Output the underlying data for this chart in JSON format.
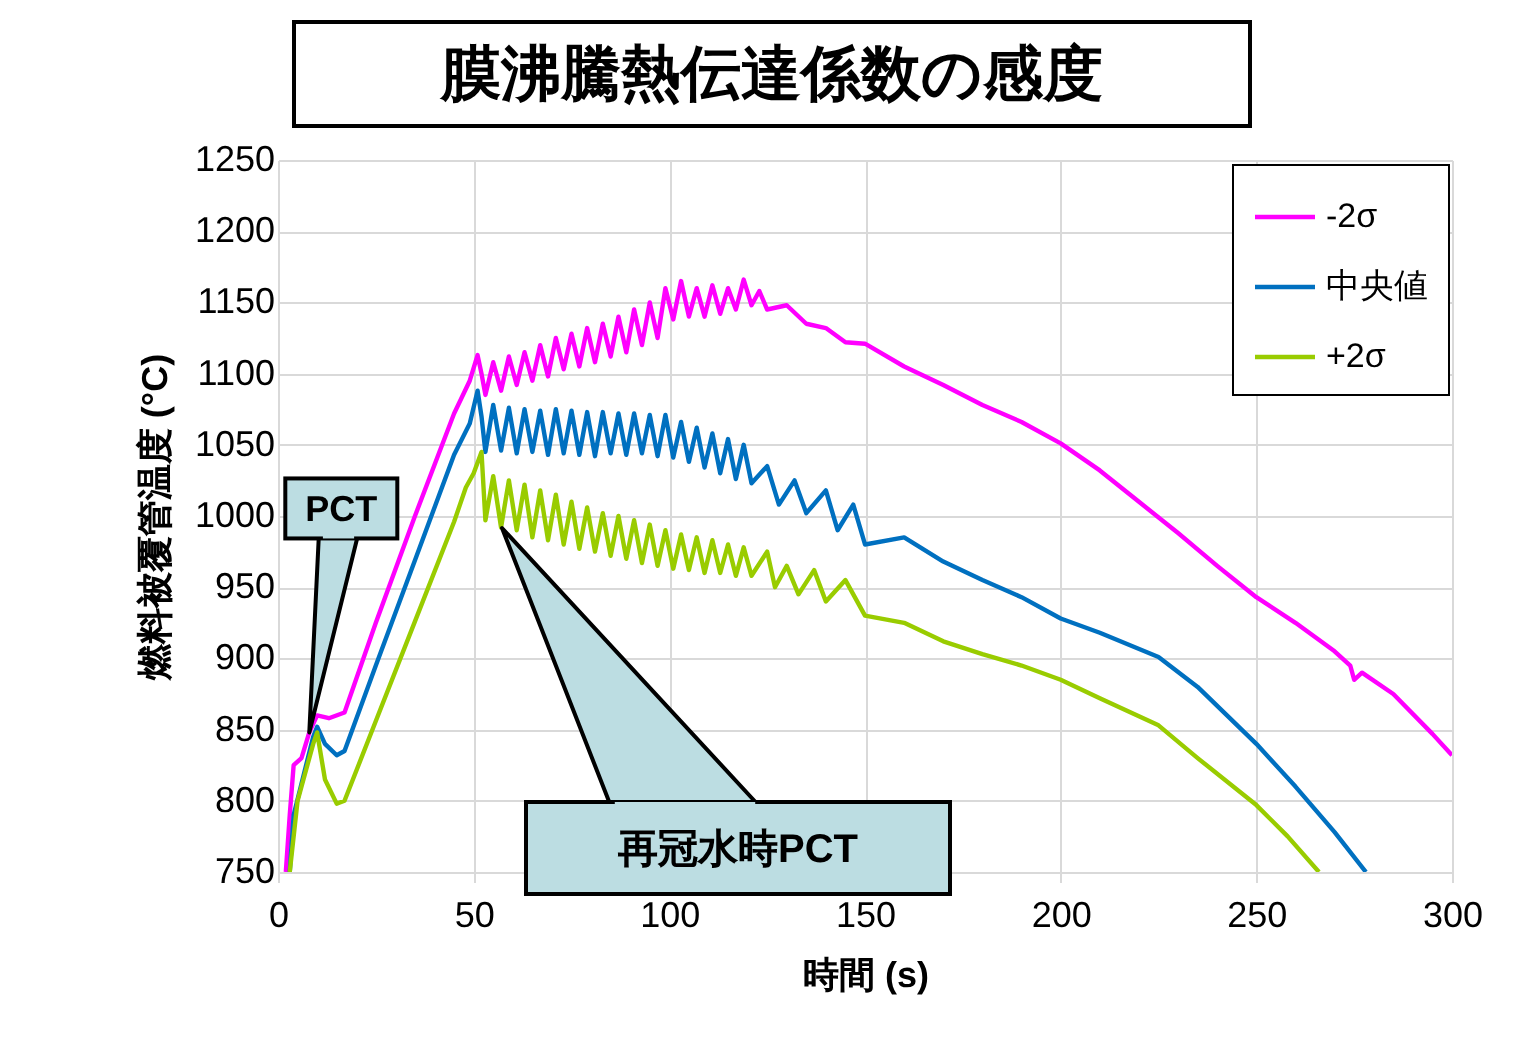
{
  "chart_data": {
    "type": "line",
    "title": "膜沸騰熱伝達係数の感度",
    "xlabel": "時間 (s)",
    "ylabel": "燃料被覆管温度 (°C)",
    "xlim": [
      0,
      300
    ],
    "xticks": [
      0,
      50,
      100,
      150,
      200,
      250,
      300
    ],
    "ylim": [
      750,
      1250
    ],
    "yticks": [
      750,
      800,
      850,
      900,
      950,
      1000,
      1050,
      1100,
      1150,
      1200,
      1250
    ],
    "grid": true,
    "legend": "top right",
    "line_style": "solid",
    "annotations": [
      "再冠水時PCT",
      {
        "text": "PCT",
        "x": 8,
        "y": 848
      }
    ],
    "series": [
      {
        "name": "-2σ",
        "color": "#ff00ff",
        "x": [
          2,
          3,
          4,
          6,
          8,
          10,
          13,
          17,
          25,
          35,
          45,
          49,
          51,
          52,
          53,
          55,
          57,
          59,
          61,
          63,
          65,
          67,
          69,
          71,
          73,
          75,
          77,
          79,
          81,
          83,
          85,
          87,
          89,
          91,
          93,
          95,
          97,
          99,
          101,
          103,
          105,
          107,
          109,
          111,
          113,
          115,
          117,
          119,
          121,
          123,
          125,
          130,
          135,
          140,
          145,
          150,
          160,
          170,
          180,
          190,
          200,
          210,
          220,
          230,
          240,
          250,
          260,
          270,
          274,
          275,
          277,
          285,
          295,
          300
        ],
        "values": [
          750,
          790,
          825,
          830,
          848,
          860,
          858,
          862,
          925,
          1000,
          1072,
          1095,
          1113,
          1100,
          1085,
          1108,
          1088,
          1112,
          1092,
          1115,
          1095,
          1120,
          1098,
          1125,
          1103,
          1128,
          1105,
          1132,
          1108,
          1135,
          1112,
          1140,
          1115,
          1145,
          1120,
          1150,
          1125,
          1160,
          1138,
          1165,
          1140,
          1160,
          1140,
          1162,
          1142,
          1160,
          1145,
          1166,
          1148,
          1158,
          1145,
          1148,
          1135,
          1132,
          1122,
          1121,
          1105,
          1092,
          1078,
          1066,
          1051,
          1032,
          1010,
          988,
          965,
          943,
          925,
          905,
          895,
          885,
          890,
          875,
          847,
          832
        ]
      },
      {
        "name": "中央値",
        "color": "#0070c0",
        "x": [
          3,
          4,
          6,
          9,
          10,
          12,
          15,
          17,
          25,
          35,
          45,
          49,
          51,
          52,
          53,
          55,
          57,
          59,
          61,
          63,
          65,
          67,
          69,
          71,
          73,
          75,
          77,
          79,
          81,
          83,
          85,
          87,
          89,
          91,
          93,
          95,
          97,
          99,
          101,
          103,
          105,
          107,
          109,
          111,
          113,
          115,
          117,
          119,
          121,
          125,
          128,
          132,
          135,
          140,
          143,
          147,
          150,
          160,
          170,
          180,
          190,
          200,
          210,
          225,
          235,
          250,
          260,
          270,
          278
        ],
        "values": [
          750,
          790,
          812,
          845,
          852,
          840,
          832,
          835,
          895,
          969,
          1043,
          1065,
          1088,
          1070,
          1045,
          1078,
          1046,
          1076,
          1044,
          1075,
          1045,
          1074,
          1043,
          1075,
          1044,
          1074,
          1043,
          1073,
          1042,
          1073,
          1044,
          1072,
          1043,
          1072,
          1044,
          1071,
          1042,
          1071,
          1041,
          1066,
          1038,
          1062,
          1034,
          1058,
          1030,
          1054,
          1026,
          1050,
          1023,
          1035,
          1008,
          1025,
          1002,
          1018,
          990,
          1008,
          980,
          985,
          968,
          955,
          943,
          928,
          918,
          901,
          880,
          840,
          810,
          778,
          750
        ]
      },
      {
        "name": "+2σ",
        "color": "#99cc00",
        "x": [
          3,
          5,
          9,
          10,
          12,
          15,
          17,
          25,
          35,
          45,
          48,
          50,
          52,
          53,
          55,
          57,
          59,
          61,
          63,
          65,
          67,
          69,
          71,
          73,
          75,
          77,
          79,
          81,
          83,
          85,
          87,
          89,
          91,
          93,
          95,
          97,
          99,
          101,
          103,
          105,
          107,
          109,
          111,
          113,
          115,
          117,
          119,
          121,
          125,
          127,
          130,
          133,
          137,
          140,
          145,
          150,
          160,
          170,
          180,
          190,
          200,
          210,
          225,
          235,
          250,
          258,
          266
        ],
        "values": [
          750,
          800,
          840,
          848,
          815,
          798,
          800,
          856,
          926,
          996,
          1020,
          1030,
          1045,
          997,
          1028,
          992,
          1025,
          990,
          1022,
          985,
          1018,
          983,
          1015,
          980,
          1010,
          977,
          1006,
          975,
          1002,
          972,
          1000,
          970,
          997,
          967,
          994,
          965,
          990,
          963,
          987,
          962,
          985,
          960,
          983,
          960,
          980,
          958,
          978,
          958,
          975,
          950,
          965,
          945,
          962,
          940,
          955,
          930,
          925,
          912,
          903,
          895,
          885,
          872,
          853,
          830,
          797,
          775,
          750
        ]
      }
    ]
  }
}
